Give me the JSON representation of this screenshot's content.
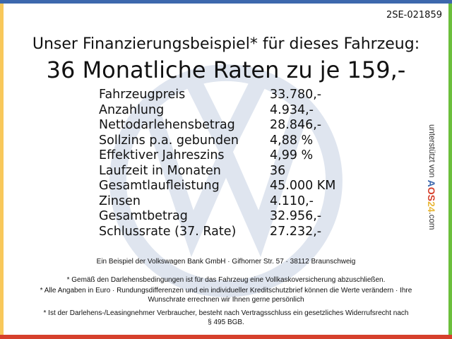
{
  "colors": {
    "top": "#3d68ad",
    "left": "#f8c85a",
    "right": "#6cbf3c",
    "bottom": "#d6402c"
  },
  "code": "2SE-021859",
  "headline": "Unser Finanzierungsbeispiel* für dieses Fahrzeug:",
  "rate_line": "36 Monatliche Raten zu je 159,-",
  "rows": [
    {
      "k": "Fahrzeugpreis",
      "v": "33.780,-"
    },
    {
      "k": "Anzahlung",
      "v": "4.934,-"
    },
    {
      "k": "Nettodarlehensbetrag",
      "v": "28.846,-"
    },
    {
      "k": "Sollzins p.a. gebunden",
      "v": "4,88 %"
    },
    {
      "k": "Effektiver Jahreszins",
      "v": "4,99 %"
    },
    {
      "k": "Laufzeit in Monaten",
      "v": "36"
    },
    {
      "k": "Gesamtlaufleistung",
      "v": "45.000 KM"
    },
    {
      "k": "Zinsen",
      "v": "4.110,-"
    },
    {
      "k": "Gesamtbetrag",
      "v": "32.956,-"
    },
    {
      "k": "Schlussrate (37. Rate)",
      "v": "27.232,-"
    }
  ],
  "side": {
    "prefix": "unterstützt von ",
    "brand": [
      "A",
      "O",
      "S",
      "2",
      "4"
    ],
    "suffix": ".com"
  },
  "footer": {
    "bank": "Ein Beispiel der Volkswagen Bank GmbH · Gifhorner Str. 57 · 38112 Braunschweig",
    "note1": "* Gemäß den Darlehensbedingungen ist für das Fahrzeug eine Vollkaskoversicherung abzuschließen.",
    "note2": "* Alle Angaben in Euro · Rundungsdifferenzen und ein individueller Kreditschutzbrief können die Werte verändern · Ihre Wunschrate errechnen wir Ihnen gerne persönlich",
    "note3": "* Ist der Darlehens-/Leasingnehmer Verbraucher, besteht nach Vertragsschluss ein gesetzliches Widerrufsrecht nach § 495 BGB."
  }
}
